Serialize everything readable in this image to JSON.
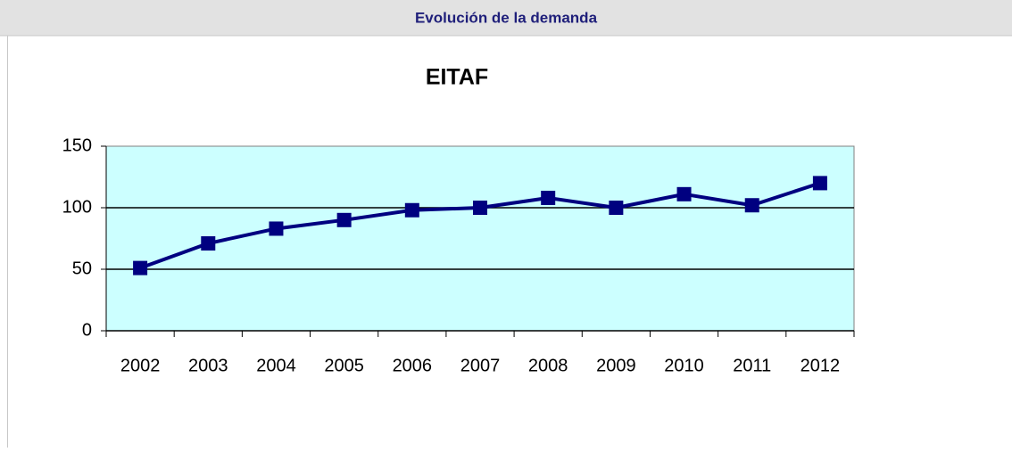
{
  "header": {
    "title": "Evolución de la demanda"
  },
  "chart_data": {
    "type": "line",
    "title": "EITAF",
    "categories": [
      "2002",
      "2003",
      "2004",
      "2005",
      "2006",
      "2007",
      "2008",
      "2009",
      "2010",
      "2011",
      "2012"
    ],
    "values": [
      51,
      71,
      83,
      90,
      98,
      100,
      108,
      100,
      111,
      102,
      120
    ],
    "color": "#000080",
    "plot_background": "#ccffff",
    "ylim": [
      0,
      150
    ],
    "yticks": [
      0,
      50,
      100,
      150
    ],
    "grid": true
  }
}
